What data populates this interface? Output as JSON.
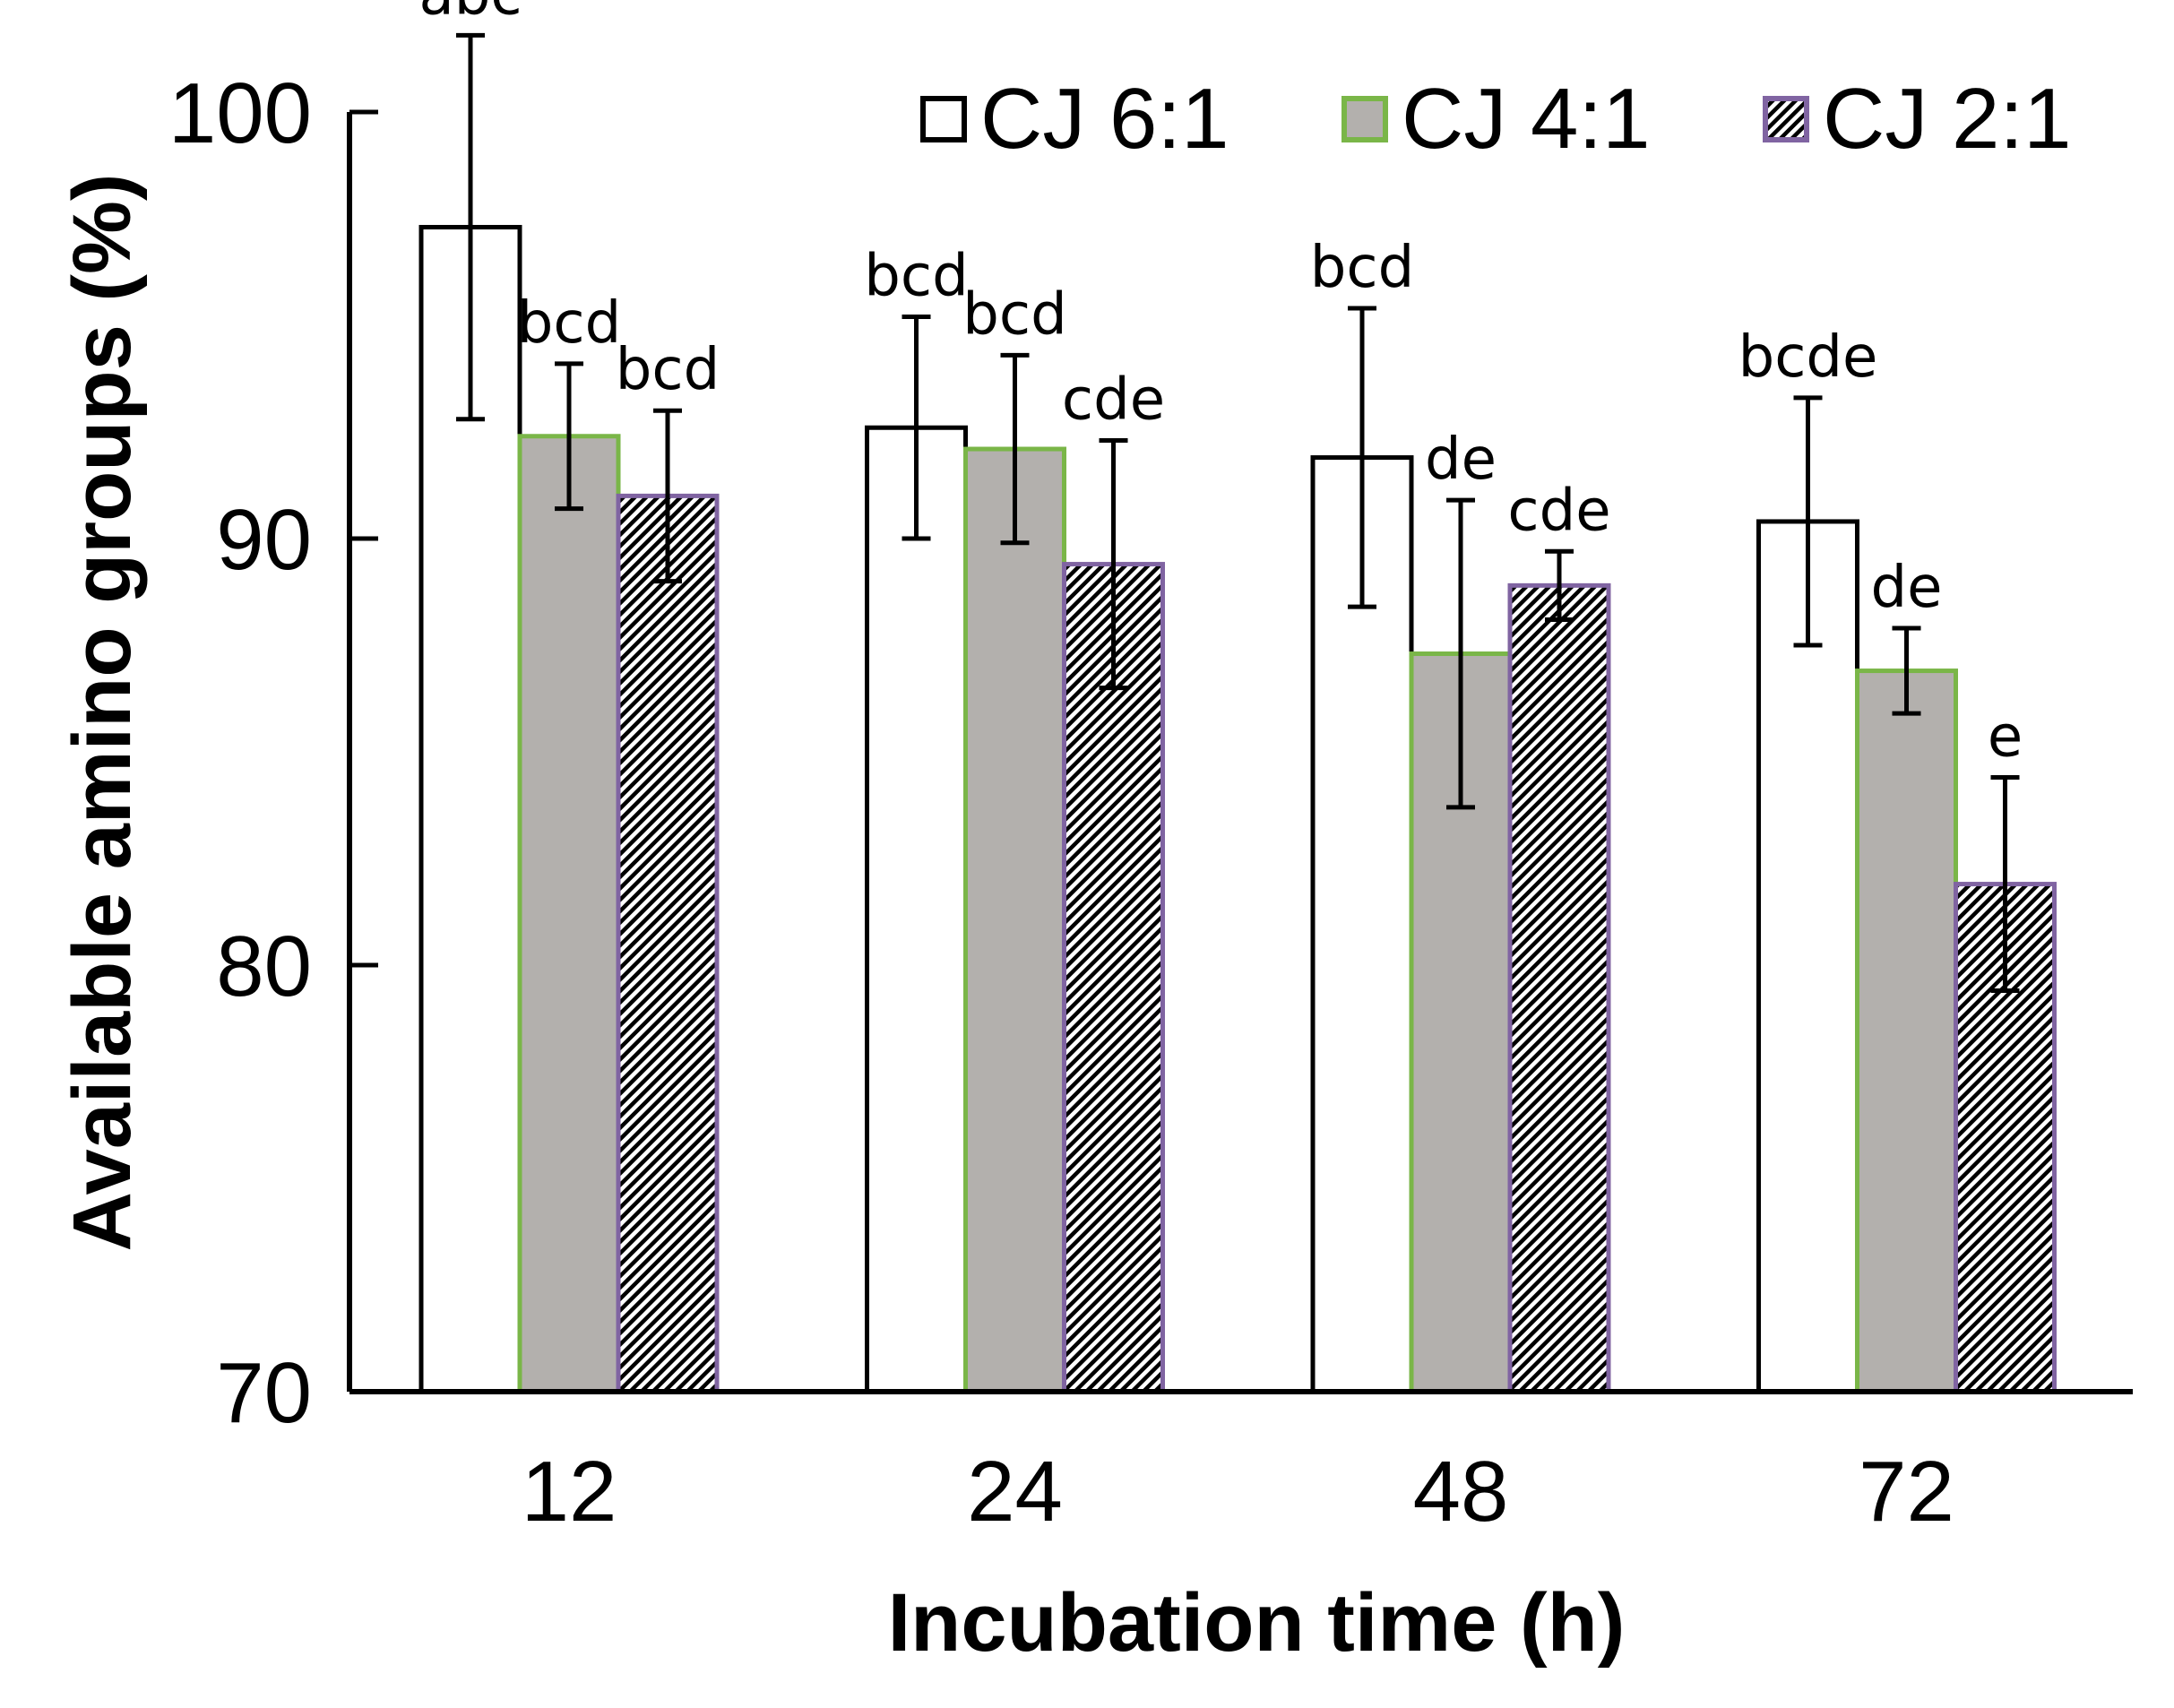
{
  "chart_data": {
    "type": "bar",
    "title": "",
    "xlabel": "Incubation time (h)",
    "ylabel": "Available amino groups (%)",
    "ylim": [
      70,
      100
    ],
    "yticks": [
      70,
      80,
      90,
      100
    ],
    "categories": [
      "12",
      "24",
      "48",
      "72"
    ],
    "legend_position": "top-right",
    "series": [
      {
        "name": "CJ 6:1",
        "style": "white",
        "fill": "#ffffff",
        "stroke": "#000000",
        "values": [
          97.3,
          92.6,
          91.9,
          90.4
        ],
        "errors": [
          4.5,
          2.6,
          3.5,
          2.9
        ],
        "labels": [
          "abc",
          "bcd",
          "bcd",
          "bcde"
        ]
      },
      {
        "name": "CJ 4:1",
        "style": "gray",
        "fill": "#b3b0ad",
        "stroke": "#7ab648",
        "values": [
          92.4,
          92.1,
          87.3,
          86.9
        ],
        "errors": [
          1.7,
          2.2,
          3.6,
          1.0
        ],
        "labels": [
          "bcd",
          "bcd",
          "de",
          "de"
        ]
      },
      {
        "name": "CJ 2:1",
        "style": "hatched",
        "fill": "hatch",
        "stroke": "#8064a2",
        "values": [
          91.0,
          89.4,
          88.9,
          81.9
        ],
        "errors": [
          2.0,
          2.9,
          0.8,
          2.5
        ],
        "labels": [
          "bcd",
          "cde",
          "cde",
          "e"
        ]
      }
    ]
  }
}
